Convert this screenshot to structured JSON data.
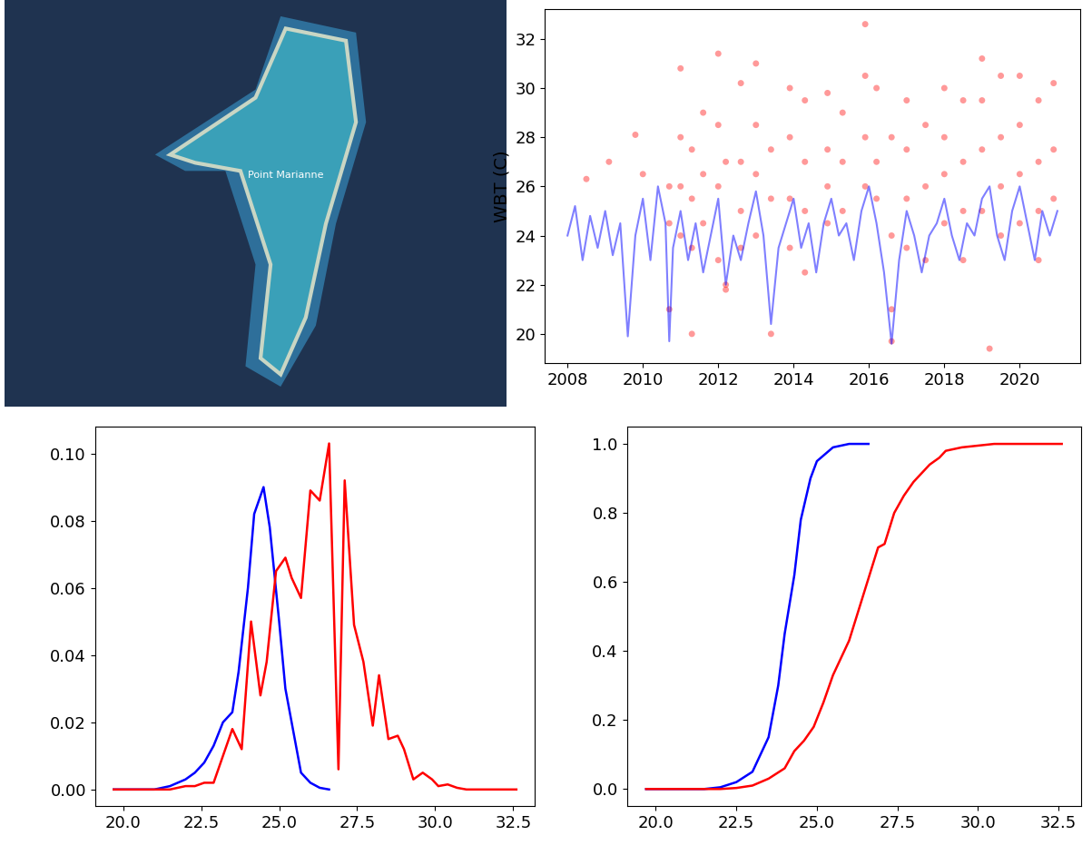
{
  "chart_data": [
    {
      "type": "map",
      "annotations": [
        "Point Marianne"
      ],
      "tick_labels": false
    },
    {
      "type": "scatter",
      "ylabel": "WBT (C)",
      "xlim": [
        2007.4,
        2021.6
      ],
      "ylim": [
        18.8,
        33.2
      ],
      "xticks": [
        2008,
        2010,
        2012,
        2014,
        2016,
        2018,
        2020
      ],
      "yticks": [
        20,
        22,
        24,
        26,
        28,
        30,
        32
      ],
      "series": [
        {
          "type": "line",
          "color": "blue",
          "x": [
            2008.0,
            2008.2,
            2008.4,
            2008.6,
            2008.8,
            2009.0,
            2009.2,
            2009.4,
            2009.6,
            2009.8,
            2010.0,
            2010.2,
            2010.4,
            2010.6,
            2010.7,
            2010.8,
            2011.0,
            2011.2,
            2011.4,
            2011.6,
            2011.8,
            2012.0,
            2012.2,
            2012.4,
            2012.6,
            2012.8,
            2013.0,
            2013.2,
            2013.4,
            2013.6,
            2013.8,
            2014.0,
            2014.2,
            2014.4,
            2014.6,
            2014.8,
            2015.0,
            2015.2,
            2015.4,
            2015.6,
            2015.8,
            2016.0,
            2016.2,
            2016.4,
            2016.6,
            2016.8,
            2017.0,
            2017.2,
            2017.4,
            2017.6,
            2017.8,
            2018.0,
            2018.2,
            2018.4,
            2018.6,
            2018.8,
            2019.0,
            2019.2,
            2019.4,
            2019.6,
            2019.8,
            2020.0,
            2020.2,
            2020.4,
            2020.6,
            2020.8,
            2021.0
          ],
          "values": [
            24.0,
            25.2,
            23.0,
            24.8,
            23.5,
            25.0,
            23.2,
            24.5,
            19.9,
            24.0,
            25.5,
            23.0,
            26.0,
            24.5,
            19.7,
            23.5,
            25.0,
            23.0,
            24.5,
            22.5,
            24.0,
            25.5,
            22.0,
            24.0,
            23.0,
            24.5,
            25.8,
            24.0,
            20.4,
            23.5,
            24.5,
            25.5,
            23.5,
            24.5,
            22.5,
            24.5,
            25.5,
            24.0,
            24.5,
            23.0,
            25.0,
            26.0,
            24.5,
            22.5,
            19.6,
            23.0,
            25.0,
            24.0,
            22.5,
            24.0,
            24.5,
            25.5,
            24.0,
            23.0,
            24.5,
            24.0,
            25.5,
            26.0,
            24.0,
            23.0,
            25.0,
            26.0,
            24.5,
            23.0,
            25.0,
            24.0,
            25.0
          ]
        },
        {
          "type": "scatter",
          "color": "red",
          "marker": "o",
          "x": [
            2008.5,
            2009.1,
            2009.8,
            2010.0,
            2010.7,
            2010.7,
            2010.7,
            2011.0,
            2011.0,
            2011.0,
            2011.0,
            2011.3,
            2011.3,
            2011.3,
            2011.3,
            2011.6,
            2011.6,
            2011.6,
            2012.0,
            2012.0,
            2012.0,
            2012.0,
            2012.2,
            2012.2,
            2012.2,
            2012.6,
            2012.6,
            2012.6,
            2012.6,
            2013.0,
            2013.0,
            2013.0,
            2013.0,
            2013.4,
            2013.4,
            2013.4,
            2013.9,
            2013.9,
            2013.9,
            2013.9,
            2014.3,
            2014.3,
            2014.3,
            2014.3,
            2014.9,
            2014.9,
            2014.9,
            2014.9,
            2015.3,
            2015.3,
            2015.3,
            2015.9,
            2015.9,
            2015.9,
            2015.9,
            2016.2,
            2016.2,
            2016.2,
            2016.6,
            2016.6,
            2016.6,
            2016.6,
            2017.0,
            2017.0,
            2017.0,
            2017.0,
            2017.5,
            2017.5,
            2017.5,
            2018.0,
            2018.0,
            2018.0,
            2018.0,
            2018.5,
            2018.5,
            2018.5,
            2018.5,
            2019.0,
            2019.0,
            2019.0,
            2019.0,
            2019.2,
            2019.5,
            2019.5,
            2019.5,
            2019.5,
            2020.0,
            2020.0,
            2020.0,
            2020.0,
            2020.5,
            2020.5,
            2020.5,
            2020.5,
            2020.9,
            2020.9,
            2020.9
          ],
          "values": [
            26.3,
            27.0,
            28.1,
            26.5,
            26.0,
            24.5,
            21.0,
            30.8,
            28.0,
            26.0,
            24.0,
            27.5,
            25.5,
            23.5,
            20.0,
            29.0,
            26.5,
            24.5,
            31.4,
            28.5,
            26.0,
            23.0,
            27.0,
            22.0,
            21.8,
            30.2,
            27.0,
            25.0,
            23.5,
            31.0,
            28.5,
            26.5,
            24.0,
            27.5,
            25.5,
            20.0,
            30.0,
            28.0,
            25.5,
            23.5,
            29.5,
            27.0,
            25.0,
            22.5,
            29.8,
            27.5,
            26.0,
            24.5,
            29.0,
            27.0,
            25.0,
            32.6,
            30.5,
            28.0,
            26.0,
            30.0,
            27.0,
            25.5,
            28.0,
            24.0,
            21.0,
            19.7,
            29.5,
            27.5,
            25.5,
            23.5,
            28.5,
            26.0,
            23.0,
            30.0,
            28.0,
            26.5,
            24.5,
            29.5,
            27.0,
            25.0,
            23.0,
            31.2,
            29.5,
            27.5,
            25.0,
            19.4,
            30.5,
            28.0,
            26.0,
            24.0,
            30.5,
            28.5,
            26.5,
            24.5,
            29.5,
            27.0,
            25.0,
            23.0,
            30.2,
            27.5,
            25.5
          ]
        }
      ]
    },
    {
      "type": "line",
      "xlim": [
        19.1,
        33.2
      ],
      "ylim": [
        -0.005,
        0.108
      ],
      "xticks": [
        20.0,
        22.5,
        25.0,
        27.5,
        30.0,
        32.5
      ],
      "yticks": [
        {
          "value": 0,
          "label": "0.00"
        },
        {
          "value": 0.02,
          "label": "0.02"
        },
        {
          "value": 0.04,
          "label": "0.04"
        },
        {
          "value": 0.06,
          "label": "0.06"
        },
        {
          "value": 0.08,
          "label": "0.08"
        },
        {
          "value": 0.1,
          "label": "0.10"
        }
      ],
      "series": [
        {
          "color": "blue",
          "x": [
            19.7,
            20.0,
            20.5,
            21.0,
            21.5,
            22.0,
            22.3,
            22.6,
            22.9,
            23.2,
            23.5,
            23.7,
            24.0,
            24.2,
            24.5,
            24.7,
            25.0,
            25.2,
            25.5,
            25.7,
            26.0,
            26.3,
            26.6
          ],
          "values": [
            0,
            0,
            0,
            0,
            0.001,
            0.003,
            0.005,
            0.008,
            0.013,
            0.02,
            0.023,
            0.035,
            0.06,
            0.082,
            0.09,
            0.078,
            0.05,
            0.03,
            0.015,
            0.005,
            0.002,
            0.0005,
            0
          ]
        },
        {
          "color": "red",
          "x": [
            19.7,
            20.5,
            21.5,
            22.0,
            22.3,
            22.6,
            22.9,
            23.2,
            23.5,
            23.8,
            24.1,
            24.4,
            24.6,
            24.9,
            25.2,
            25.4,
            25.7,
            26.0,
            26.3,
            26.6,
            26.9,
            27.1,
            27.4,
            27.7,
            28.0,
            28.2,
            28.5,
            28.8,
            29.0,
            29.3,
            29.6,
            29.9,
            30.1,
            30.4,
            30.7,
            31.0,
            32.6
          ],
          "values": [
            0,
            0,
            0,
            0.001,
            0.001,
            0.002,
            0.002,
            0.01,
            0.018,
            0.012,
            0.05,
            0.028,
            0.038,
            0.065,
            0.069,
            0.063,
            0.057,
            0.089,
            0.086,
            0.103,
            0.006,
            0.092,
            0.049,
            0.038,
            0.019,
            0.034,
            0.015,
            0.016,
            0.012,
            0.003,
            0.005,
            0.003,
            0.001,
            0.0015,
            0.0005,
            0,
            0
          ]
        }
      ]
    },
    {
      "type": "line",
      "xlim": [
        19.1,
        33.2
      ],
      "ylim": [
        -0.05,
        1.05
      ],
      "xticks": [
        20.0,
        22.5,
        25.0,
        27.5,
        30.0,
        32.5
      ],
      "yticks": [
        0.0,
        0.2,
        0.4,
        0.6,
        0.8,
        1.0
      ],
      "series": [
        {
          "color": "blue",
          "x": [
            19.7,
            21.0,
            21.5,
            22.0,
            22.5,
            23.0,
            23.5,
            23.8,
            24.0,
            24.3,
            24.5,
            24.8,
            25.0,
            25.5,
            26.0,
            26.6
          ],
          "values": [
            0,
            0,
            0,
            0.005,
            0.02,
            0.05,
            0.15,
            0.3,
            0.45,
            0.62,
            0.78,
            0.9,
            0.95,
            0.99,
            1.0,
            1.0
          ]
        },
        {
          "color": "red",
          "x": [
            19.7,
            22.0,
            22.5,
            23.0,
            23.5,
            24.0,
            24.3,
            24.6,
            24.9,
            25.2,
            25.5,
            25.8,
            26.0,
            26.3,
            26.6,
            26.9,
            27.1,
            27.4,
            27.7,
            28.0,
            28.2,
            28.5,
            28.8,
            29.0,
            29.5,
            30.0,
            30.5,
            32.6
          ],
          "values": [
            0,
            0,
            0.003,
            0.01,
            0.03,
            0.06,
            0.11,
            0.14,
            0.18,
            0.25,
            0.33,
            0.39,
            0.43,
            0.52,
            0.61,
            0.7,
            0.71,
            0.8,
            0.85,
            0.89,
            0.91,
            0.94,
            0.96,
            0.98,
            0.99,
            0.995,
            1.0,
            1.0
          ]
        }
      ]
    }
  ]
}
